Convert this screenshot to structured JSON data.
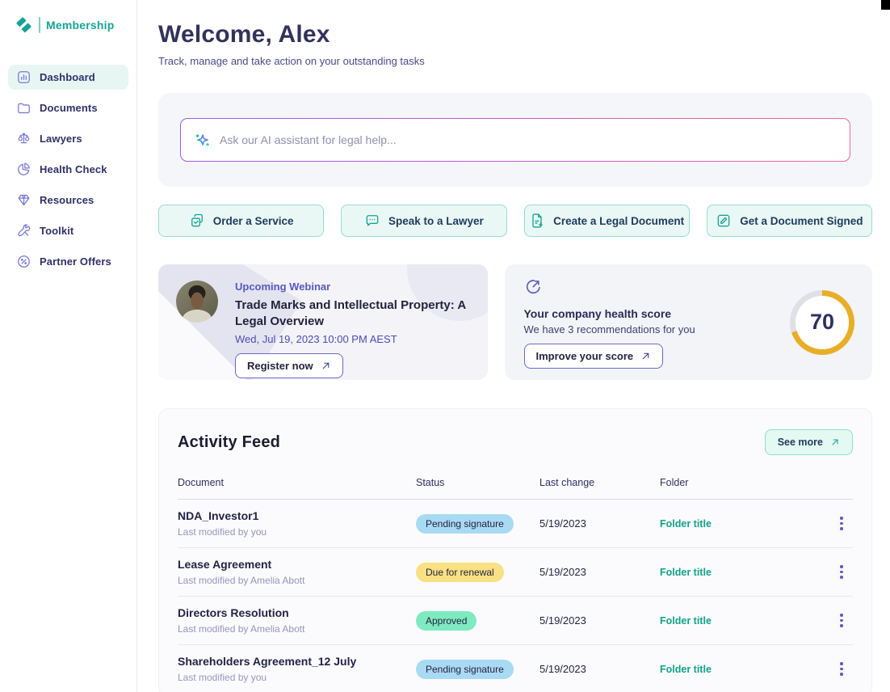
{
  "app": {
    "brand": "Membership",
    "logo_icon": "double-leaf-icon"
  },
  "sidebar": {
    "items": [
      {
        "label": "Dashboard",
        "icon": "dashboard-icon",
        "active": true
      },
      {
        "label": "Documents",
        "icon": "folder-icon",
        "active": false
      },
      {
        "label": "Lawyers",
        "icon": "scales-icon",
        "active": false
      },
      {
        "label": "Health Check",
        "icon": "pie-chart-icon",
        "active": false
      },
      {
        "label": "Resources",
        "icon": "gem-icon",
        "active": false
      },
      {
        "label": "Toolkit",
        "icon": "tools-icon",
        "active": false
      },
      {
        "label": "Partner Offers",
        "icon": "percent-circle-icon",
        "active": false
      }
    ]
  },
  "header": {
    "title": "Welcome, Alex",
    "subtitle": "Track, manage and take action on your outstanding tasks"
  },
  "ai": {
    "placeholder": "Ask our AI assistant for legal help...",
    "icon": "sparkle-icon"
  },
  "quick_actions": [
    {
      "label": "Order a Service",
      "icon": "copy-check-icon"
    },
    {
      "label": "Speak to a Lawyer",
      "icon": "chat-icon"
    },
    {
      "label": "Create a Legal Document",
      "icon": "doc-plus-icon"
    },
    {
      "label": "Get a Document Signed",
      "icon": "sign-icon"
    }
  ],
  "webinar": {
    "eyebrow": "Upcoming Webinar",
    "title": "Trade Marks and Intellectual Property: A Legal Overview",
    "datetime": "Wed, Jul 19, 2023 10:00 PM AEST",
    "cta_label": "Register now",
    "cta_icon": "arrow-up-right-icon"
  },
  "health": {
    "icon": "gauge-icon",
    "title": "Your company health score",
    "subtitle": "We have 3 recommendations for you",
    "cta_label": "Improve your score",
    "score": 70,
    "ring_color": "#e9ae27",
    "ring_track_color": "#dfdfe6"
  },
  "activity": {
    "title": "Activity Feed",
    "see_more_label": "See more",
    "columns": [
      "Document",
      "Status",
      "Last change",
      "Folder"
    ],
    "rows": [
      {
        "name": "NDA_Investor1",
        "modified": "Last modified by you",
        "status": "Pending signature",
        "status_type": "info",
        "date": "5/19/2023",
        "folder": "Folder title"
      },
      {
        "name": "Lease Agreement",
        "modified": "Last modified by Amelia Abott",
        "status": "Due for renewal",
        "status_type": "warning",
        "date": "5/19/2023",
        "folder": "Folder title"
      },
      {
        "name": "Directors Resolution",
        "modified": "Last modified by Amelia Abott",
        "status": "Approved",
        "status_type": "success",
        "date": "5/19/2023",
        "folder": "Folder title"
      },
      {
        "name": "Shareholders Agreement_12 July",
        "modified": "Last modified by you",
        "status": "Pending signature",
        "status_type": "info",
        "date": "5/19/2023",
        "folder": "Folder title"
      }
    ]
  },
  "colors": {
    "brand_teal": "#16a394",
    "icon_purple": "#7b78d4",
    "badge_info": "#a9daf3",
    "badge_warning": "#f8e083",
    "badge_success": "#7feac0",
    "folder_link": "#12a188"
  }
}
